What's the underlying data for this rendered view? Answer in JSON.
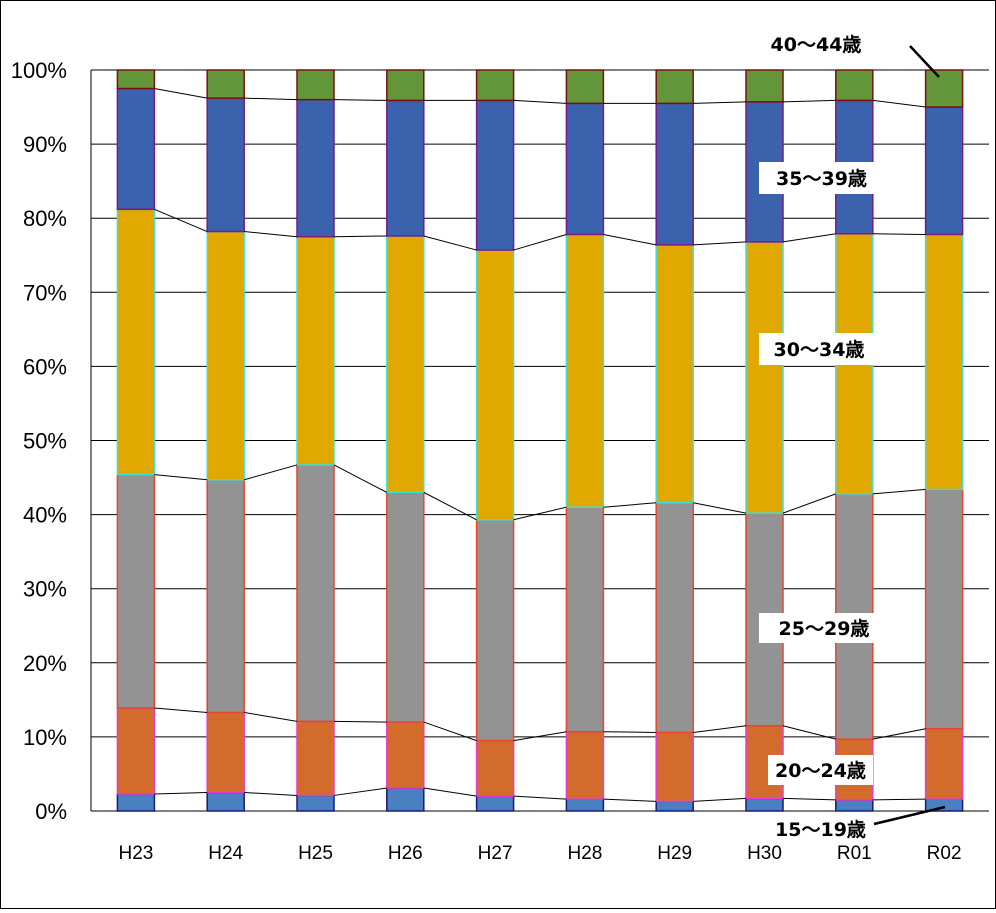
{
  "chart_data": {
    "type": "stacked-bar-100",
    "title": "",
    "xlabel": "",
    "ylabel": "",
    "ylim": [
      0,
      100
    ],
    "y_ticks": [
      "0%",
      "10%",
      "20%",
      "30%",
      "40%",
      "50%",
      "60%",
      "70%",
      "80%",
      "90%",
      "100%"
    ],
    "categories": [
      "H23",
      "H24",
      "H25",
      "H26",
      "H27",
      "H28",
      "H29",
      "H30",
      "R01",
      "R02"
    ],
    "series": [
      {
        "name": "15～19歳",
        "color": "#4a7fc1",
        "edge": "#1a1a7a",
        "values": [
          2.3,
          2.5,
          2.1,
          3.1,
          2.0,
          1.6,
          1.3,
          1.7,
          1.5,
          1.6
        ]
      },
      {
        "name": "20～24歳",
        "color": "#d26b2c",
        "edge": "#e83ad0",
        "values": [
          11.6,
          10.8,
          10.0,
          8.9,
          7.5,
          9.1,
          9.3,
          9.8,
          8.2,
          9.5
        ]
      },
      {
        "name": "25～29歳",
        "color": "#939393",
        "edge": "#e8452c",
        "values": [
          31.5,
          31.4,
          34.6,
          31.0,
          29.8,
          30.3,
          31.0,
          28.7,
          33.1,
          32.3
        ]
      },
      {
        "name": "30～34歳",
        "color": "#e0a800",
        "edge": "#3ee0d6",
        "values": [
          35.8,
          33.5,
          30.8,
          34.6,
          36.4,
          36.8,
          34.8,
          36.6,
          35.1,
          34.4
        ]
      },
      {
        "name": "35～39歳",
        "color": "#3a62ad",
        "edge": "#7a1a8a",
        "values": [
          16.3,
          18.0,
          18.5,
          18.3,
          20.2,
          17.7,
          19.1,
          18.9,
          18.0,
          17.2
        ]
      },
      {
        "name": "40～44歳",
        "color": "#63963b",
        "edge": "#7a1010",
        "values": [
          2.5,
          3.8,
          4.0,
          4.1,
          4.1,
          4.5,
          4.5,
          4.3,
          4.1,
          5.0
        ]
      }
    ],
    "series_labels": [
      "15～19歳",
      "20～24歳",
      "25～29歳",
      "30～34歳",
      "35～39歳",
      "40～44歳"
    ],
    "grid": true,
    "legend": "inline labels on right bars"
  }
}
